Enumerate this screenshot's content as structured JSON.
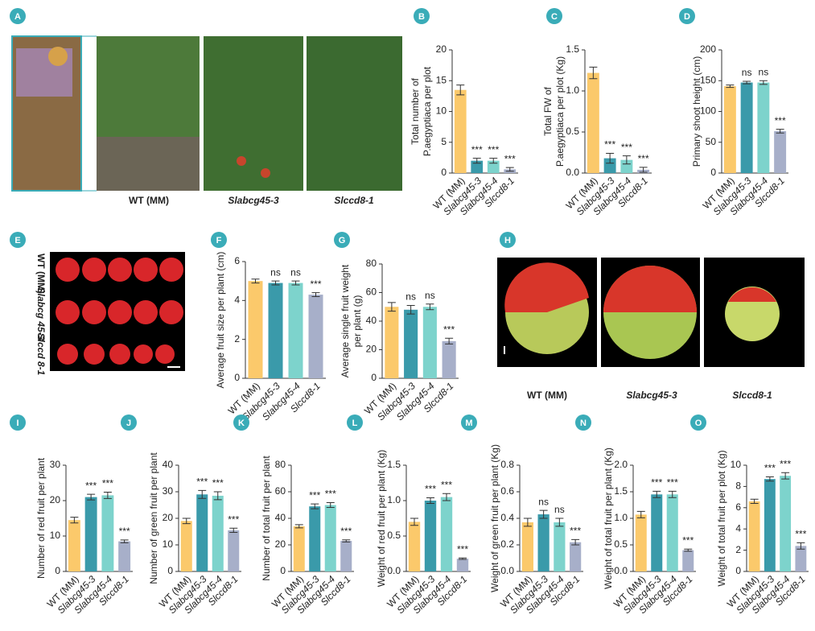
{
  "photos": [
    {
      "panel": "A",
      "labels": [
        "WT (MM)",
        "Slabcg45-3",
        "Slccd8-1"
      ]
    },
    {
      "panel": "E",
      "labels": [
        "WT (MM)",
        "Slabcg 45-3",
        "Slccd 8-1"
      ]
    },
    {
      "panel": "H",
      "labels": [
        "WT (MM)",
        "Slabcg45-3",
        "Slccd8-1"
      ]
    }
  ],
  "chart_data": [
    {
      "type": "bar",
      "panel": "B",
      "ylabel": [
        "Total number of",
        "P.aegyptiaca per plot"
      ],
      "categories": [
        "WT (MM)",
        "Slabcg45-3",
        "Slabcg45-4",
        "Slccd8-1"
      ],
      "colors": [
        "#fbc96b",
        "#3a9aaa",
        "#7dd3cc",
        "#a7afc9"
      ],
      "values": [
        13.5,
        2,
        2,
        0.6
      ],
      "errors": [
        0.8,
        0.4,
        0.4,
        0.3
      ],
      "annotations": [
        null,
        "***",
        "***",
        "***"
      ],
      "ylim": [
        0,
        20
      ],
      "yticks": [
        0,
        5,
        10,
        15,
        20
      ]
    },
    {
      "type": "bar",
      "panel": "C",
      "ylabel": [
        "Total FW of",
        "P.aegyptiaca per plot (Kg)"
      ],
      "categories": [
        "WT (MM)",
        "Slabcg45-3",
        "Slabcg45-4",
        "Slccd8-1"
      ],
      "colors": [
        "#fbc96b",
        "#3a9aaa",
        "#7dd3cc",
        "#a7afc9"
      ],
      "values": [
        1.22,
        0.18,
        0.16,
        0.04
      ],
      "errors": [
        0.07,
        0.06,
        0.05,
        0.03
      ],
      "annotations": [
        null,
        "***",
        "***",
        "***"
      ],
      "ylim": [
        0,
        1.5
      ],
      "yticks": [
        {
          "value": 0,
          "label": "0.0"
        },
        0.5,
        {
          "value": 1,
          "label": "1.0"
        },
        1.5
      ]
    },
    {
      "type": "bar",
      "panel": "D",
      "ylabel": [
        "Primary shoot height (cm)"
      ],
      "categories": [
        "WT (MM)",
        "Slabcg45-3",
        "Slabcg45-4",
        "Slccd8-1"
      ],
      "colors": [
        "#fbc96b",
        "#3a9aaa",
        "#7dd3cc",
        "#a7afc9"
      ],
      "values": [
        141,
        147,
        147,
        68
      ],
      "errors": [
        2,
        2,
        3,
        3
      ],
      "annotations": [
        null,
        "ns",
        "ns",
        "***"
      ],
      "ylim": [
        0,
        200
      ],
      "yticks": [
        0,
        50,
        100,
        150,
        200
      ]
    },
    {
      "type": "bar",
      "panel": "F",
      "ylabel": [
        "Average fruit size per plant (cm)"
      ],
      "categories": [
        "WT (MM)",
        "Slabcg45-3",
        "Slabcg45-4",
        "Slccd8-1"
      ],
      "colors": [
        "#fbc96b",
        "#3a9aaa",
        "#7dd3cc",
        "#a7afc9"
      ],
      "values": [
        5.0,
        4.9,
        4.9,
        4.3
      ],
      "errors": [
        0.1,
        0.1,
        0.1,
        0.1
      ],
      "annotations": [
        null,
        "ns",
        "ns",
        "***"
      ],
      "ylim": [
        0,
        6
      ],
      "yticks": [
        0,
        2,
        4,
        6
      ]
    },
    {
      "type": "bar",
      "panel": "G",
      "ylabel": [
        "Average single fruit weight",
        "per plant (g)"
      ],
      "categories": [
        "WT (MM)",
        "Slabcg45-3",
        "Slabcg45-4",
        "Slccd8-1"
      ],
      "colors": [
        "#fbc96b",
        "#3a9aaa",
        "#7dd3cc",
        "#a7afc9"
      ],
      "values": [
        50,
        48,
        50,
        26
      ],
      "errors": [
        3,
        3,
        2,
        2
      ],
      "annotations": [
        null,
        "ns",
        "ns",
        "***"
      ],
      "ylim": [
        0,
        80
      ],
      "yticks": [
        0,
        20,
        40,
        60,
        80
      ]
    },
    {
      "type": "bar",
      "panel": "I",
      "ylabel": [
        "Number of red fruit per plant"
      ],
      "categories": [
        "WT (MM)",
        "Slabcg45-3",
        "Slabcg45-4",
        "Slccd8-1"
      ],
      "colors": [
        "#fbc96b",
        "#3a9aaa",
        "#7dd3cc",
        "#a7afc9"
      ],
      "values": [
        14.5,
        21,
        21.5,
        8.5
      ],
      "errors": [
        0.8,
        0.8,
        0.9,
        0.4
      ],
      "annotations": [
        null,
        "***",
        "***",
        "***"
      ],
      "ylim": [
        0,
        30
      ],
      "yticks": [
        0,
        10,
        20,
        30
      ]
    },
    {
      "type": "bar",
      "panel": "J",
      "ylabel": [
        "Number of green fruit per plant"
      ],
      "categories": [
        "WT (MM)",
        "Slabcg45-3",
        "Slabcg45-4",
        "Slccd8-1"
      ],
      "colors": [
        "#fbc96b",
        "#3a9aaa",
        "#7dd3cc",
        "#a7afc9"
      ],
      "values": [
        19,
        29,
        28.5,
        15.5
      ],
      "errors": [
        1,
        1.5,
        1.5,
        0.8
      ],
      "annotations": [
        null,
        "***",
        "***",
        "***"
      ],
      "ylim": [
        0,
        40
      ],
      "yticks": [
        0,
        10,
        20,
        30,
        40
      ]
    },
    {
      "type": "bar",
      "panel": "K",
      "ylabel": [
        "Number of total fruit per plant"
      ],
      "categories": [
        "WT (MM)",
        "Slabcg45-3",
        "Slabcg45-4",
        "Slccd8-1"
      ],
      "colors": [
        "#fbc96b",
        "#3a9aaa",
        "#7dd3cc",
        "#a7afc9"
      ],
      "values": [
        34,
        49,
        50,
        23
      ],
      "errors": [
        1.2,
        1.8,
        1.8,
        0.8
      ],
      "annotations": [
        null,
        "***",
        "***",
        "***"
      ],
      "ylim": [
        0,
        80
      ],
      "yticks": [
        0,
        20,
        40,
        60,
        80
      ]
    },
    {
      "type": "bar",
      "panel": "L",
      "ylabel": [
        "Weight of red fruit per plant (Kg)"
      ],
      "categories": [
        "WT (MM)",
        "Slabcg45-3",
        "Slabcg45-4",
        "Slccd8-1"
      ],
      "colors": [
        "#fbc96b",
        "#3a9aaa",
        "#7dd3cc",
        "#a7afc9"
      ],
      "values": [
        0.7,
        1.0,
        1.05,
        0.18
      ],
      "errors": [
        0.05,
        0.04,
        0.05,
        0.01
      ],
      "annotations": [
        null,
        "***",
        "***",
        "***"
      ],
      "ylim": [
        0,
        1.5
      ],
      "yticks": [
        {
          "value": 0,
          "label": "0.0"
        },
        0.5,
        {
          "value": 1,
          "label": "1.0"
        },
        1.5
      ]
    },
    {
      "type": "bar",
      "panel": "M",
      "ylabel": [
        "Weight of green fruit per plant (Kg)"
      ],
      "categories": [
        "WT (MM)",
        "Slabcg45-3",
        "Slabcg45-4",
        "Slccd8-1"
      ],
      "colors": [
        "#fbc96b",
        "#3a9aaa",
        "#7dd3cc",
        "#a7afc9"
      ],
      "values": [
        0.37,
        0.43,
        0.37,
        0.22
      ],
      "errors": [
        0.03,
        0.03,
        0.03,
        0.02
      ],
      "annotations": [
        null,
        "ns",
        "ns",
        "***"
      ],
      "ylim": [
        0,
        0.8
      ],
      "yticks": [
        {
          "value": 0,
          "label": "0.0"
        },
        0.2,
        0.4,
        0.6,
        0.8
      ]
    },
    {
      "type": "bar",
      "panel": "N",
      "ylabel": [
        "Weight of total fruit per plant (Kg)"
      ],
      "categories": [
        "WT (MM)",
        "Slabcg45-3",
        "Slabcg45-4",
        "Slccd8-1"
      ],
      "colors": [
        "#fbc96b",
        "#3a9aaa",
        "#7dd3cc",
        "#a7afc9"
      ],
      "values": [
        1.07,
        1.45,
        1.45,
        0.4
      ],
      "errors": [
        0.06,
        0.06,
        0.06,
        0.02
      ],
      "annotations": [
        null,
        "***",
        "***",
        "***"
      ],
      "ylim": [
        0,
        2
      ],
      "yticks": [
        {
          "value": 0,
          "label": "0.0"
        },
        0.5,
        {
          "value": 1,
          "label": "1.0"
        },
        1.5,
        {
          "value": 2,
          "label": "2.0"
        }
      ]
    },
    {
      "type": "bar",
      "panel": "O",
      "ylabel": [
        "Weight of total fruit per plot (Kg)"
      ],
      "categories": [
        "WT (MM)",
        "Slabcg45-3",
        "Slabcg45-4",
        "Slccd8-1"
      ],
      "colors": [
        "#fbc96b",
        "#3a9aaa",
        "#7dd3cc",
        "#a7afc9"
      ],
      "values": [
        6.6,
        8.7,
        9.0,
        2.4
      ],
      "errors": [
        0.2,
        0.2,
        0.3,
        0.3
      ],
      "annotations": [
        null,
        "***",
        "***",
        "***"
      ],
      "ylim": [
        0,
        10
      ],
      "yticks": [
        0,
        2,
        4,
        6,
        8,
        10
      ]
    }
  ]
}
